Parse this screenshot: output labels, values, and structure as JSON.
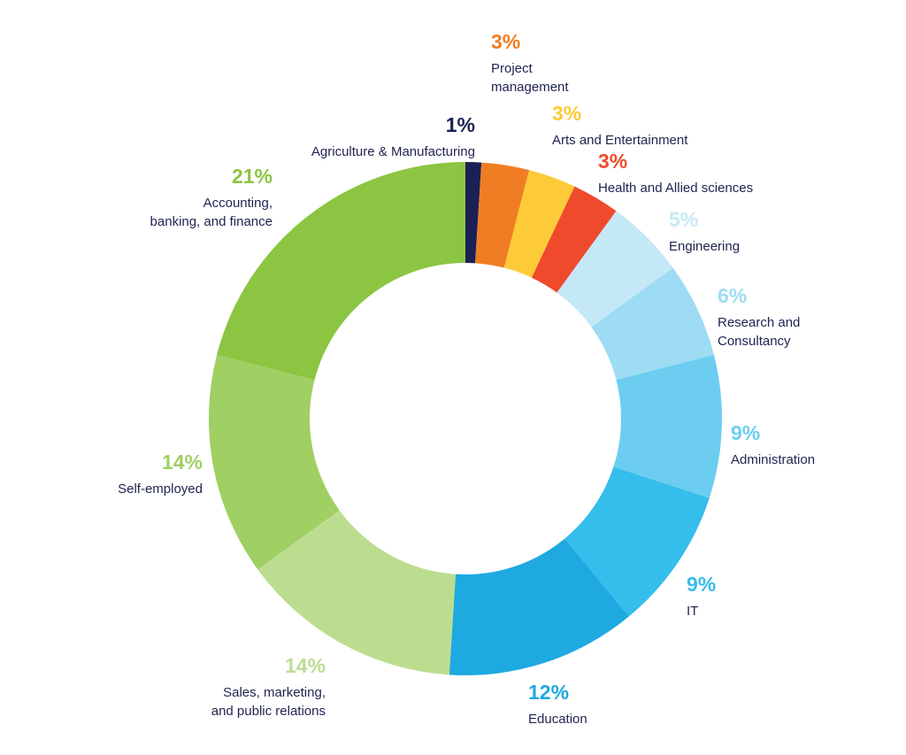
{
  "chart_data": {
    "type": "pie",
    "variant": "donut",
    "legend": "none",
    "slices": [
      {
        "pct_label": "1%",
        "value": 1,
        "label": [
          "Agriculture & Manufacturing"
        ],
        "color": "#1b2155"
      },
      {
        "pct_label": "3%",
        "value": 3,
        "label": [
          "Project",
          "management"
        ],
        "color": "#f07d23"
      },
      {
        "pct_label": "3%",
        "value": 3,
        "label": [
          "Arts and Entertainment"
        ],
        "color": "#fdcb38"
      },
      {
        "pct_label": "3%",
        "value": 3,
        "label": [
          "Health and Allied sciences"
        ],
        "color": "#ef4a2c"
      },
      {
        "pct_label": "5%",
        "value": 5,
        "label": [
          "Engineering"
        ],
        "color": "#c5e8f6"
      },
      {
        "pct_label": "6%",
        "value": 6,
        "label": [
          "Research and",
          "Consultancy"
        ],
        "color": "#9edcf4"
      },
      {
        "pct_label": "9%",
        "value": 9,
        "label": [
          "Administration"
        ],
        "color": "#6ccdf1"
      },
      {
        "pct_label": "9%",
        "value": 9,
        "label": [
          "IT"
        ],
        "color": "#35bdec"
      },
      {
        "pct_label": "12%",
        "value": 12,
        "label": [
          "Education"
        ],
        "color": "#1ea9e1"
      },
      {
        "pct_label": "14%",
        "value": 14,
        "label": [
          "Sales, marketing,",
          "and public relations"
        ],
        "color": "#bcdd90"
      },
      {
        "pct_label": "14%",
        "value": 14,
        "label": [
          "Self-employed"
        ],
        "color": "#a0cf64"
      },
      {
        "pct_label": "21%",
        "value": 21,
        "label": [
          "Accounting,",
          "banking, and finance"
        ],
        "color": "#8cc541"
      }
    ]
  },
  "label_text_color": "#1e2350"
}
